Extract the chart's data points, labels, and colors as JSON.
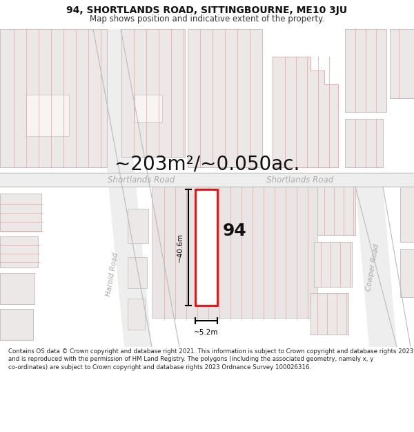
{
  "title": "94, SHORTLANDS ROAD, SITTINGBOURNE, ME10 3JU",
  "subtitle": "Map shows position and indicative extent of the property.",
  "area_text": "~203m²/~0.050ac.",
  "property_number": "94",
  "dim_vertical": "~40.6m",
  "dim_horizontal": "~5.2m",
  "road_label_left": "Shortlands Road",
  "road_label_right": "Shortlands Road",
  "road_label_harold": "Harold Road",
  "road_label_cowper": "Cowper Road",
  "footer_text": "Contains OS data © Crown copyright and database right 2021. This information is subject to Crown copyright and database rights 2023 and is reproduced with the permission of HM Land Registry. The polygons (including the associated geometry, namely x, y co-ordinates) are subject to Crown copyright and database rights 2023 Ordnance Survey 100026316.",
  "bg_color": "#ffffff",
  "map_bg": "#f7f3f3",
  "building_fill": "#ede8e8",
  "building_stroke": "#e8a0a0",
  "building_stroke_gray": "#c8c0c0",
  "highlight_fill": "#ffffff",
  "highlight_stroke": "#ff0000",
  "dim_line_color": "#000000",
  "road_fill": "#f0ecec",
  "road_line_color": "#cccccc",
  "title_fontsize": 10,
  "subtitle_fontsize": 8.5,
  "area_fontsize": 20,
  "number_fontsize": 18,
  "road_label_fontsize": 8.5,
  "dim_fontsize": 7.5,
  "footer_fontsize": 6.2
}
